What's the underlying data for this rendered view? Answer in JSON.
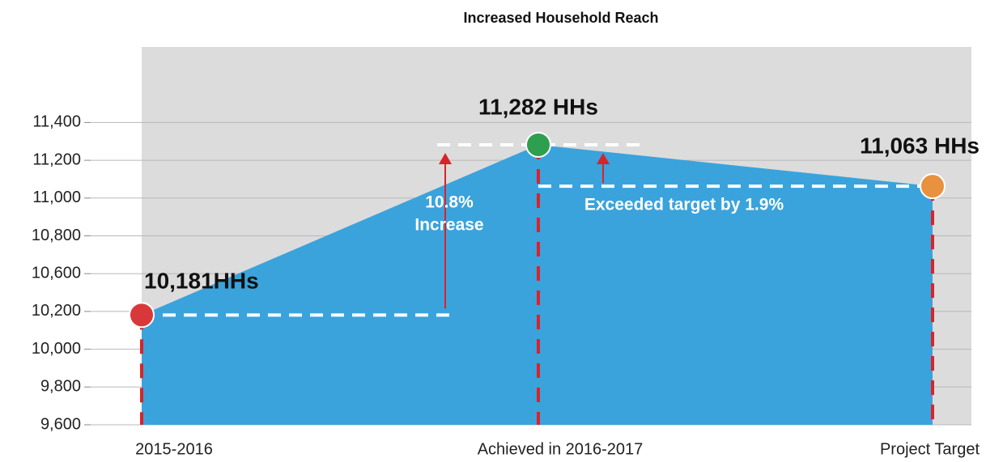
{
  "chart_data": {
    "type": "area",
    "title": "Increased Household Reach",
    "categories": [
      "2015-2016",
      "Achieved in 2016-2017",
      "Project Target"
    ],
    "values": [
      10181,
      11282,
      11063
    ],
    "value_labels": [
      "10,181HHs",
      "11,282 HHs",
      "11,063 HHs"
    ],
    "color": "#3aa3dc",
    "point_colors": [
      "#d9383a",
      "#2e9e4f",
      "#e8913f"
    ],
    "ylim": [
      9600,
      11800
    ],
    "yticks": [
      {
        "value": 9600,
        "label": "9,600"
      },
      {
        "value": 9800,
        "label": "9,800"
      },
      {
        "value": 10000,
        "label": "10,000"
      },
      {
        "value": 10200,
        "label": "10,200"
      },
      {
        "value": 10600,
        "label": "10,600"
      },
      {
        "value": 10800,
        "label": "10,800"
      },
      {
        "value": 11000,
        "label": "11,000"
      },
      {
        "value": 11200,
        "label": "11,200"
      },
      {
        "value": 11400,
        "label": "11,400"
      }
    ],
    "grid": true,
    "annotations": [
      "10.8%",
      "Increase",
      "Exceeded target by 1.9%"
    ]
  }
}
